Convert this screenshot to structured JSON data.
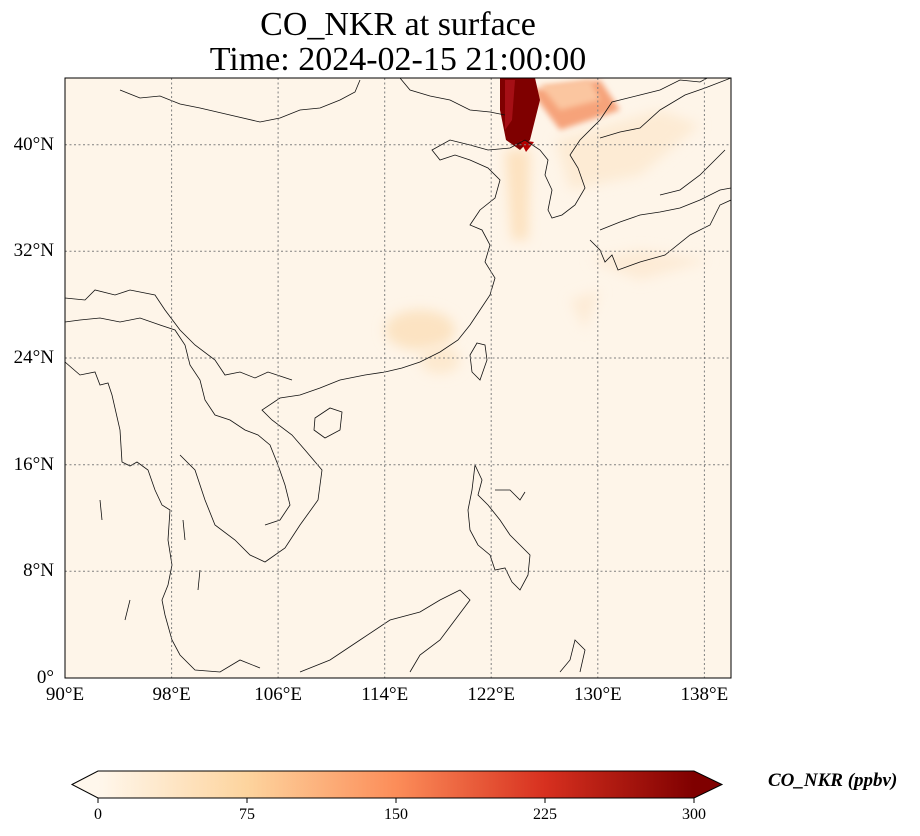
{
  "title": {
    "line1": "CO_NKR at surface",
    "line2": "Time: 2024-02-15 21:00:00"
  },
  "map": {
    "extent": {
      "lon_min": 90,
      "lon_max": 140,
      "lat_min": 0,
      "lat_max": 45
    },
    "background_color": "#fef5e9",
    "gridlines": "dotted",
    "lat_ticks": [
      {
        "value": 0,
        "label": "0°"
      },
      {
        "value": 8,
        "label": "8°N"
      },
      {
        "value": 16,
        "label": "16°N"
      },
      {
        "value": 24,
        "label": "24°N"
      },
      {
        "value": 32,
        "label": "32°N"
      },
      {
        "value": 40,
        "label": "40°N"
      }
    ],
    "lon_ticks": [
      {
        "value": 90,
        "label": "90°E"
      },
      {
        "value": 98,
        "label": "98°E"
      },
      {
        "value": 106,
        "label": "106°E"
      },
      {
        "value": 114,
        "label": "114°E"
      },
      {
        "value": 122,
        "label": "122°E"
      },
      {
        "value": 130,
        "label": "130°E"
      },
      {
        "value": 138,
        "label": "138°E"
      }
    ]
  },
  "colorbar": {
    "title": "CO_NKR (ppbv)",
    "colormap": "OrRd",
    "colors": [
      "#fff7ec",
      "#fdd49e",
      "#fc8d59",
      "#d7301f",
      "#7f0000"
    ],
    "vmin": 0,
    "vmax": 300,
    "ticks": [
      {
        "value": 0,
        "label": "0"
      },
      {
        "value": 75,
        "label": "75"
      },
      {
        "value": 150,
        "label": "150"
      },
      {
        "value": 225,
        "label": "225"
      },
      {
        "value": 300,
        "label": "300"
      }
    ],
    "extend": "both"
  }
}
